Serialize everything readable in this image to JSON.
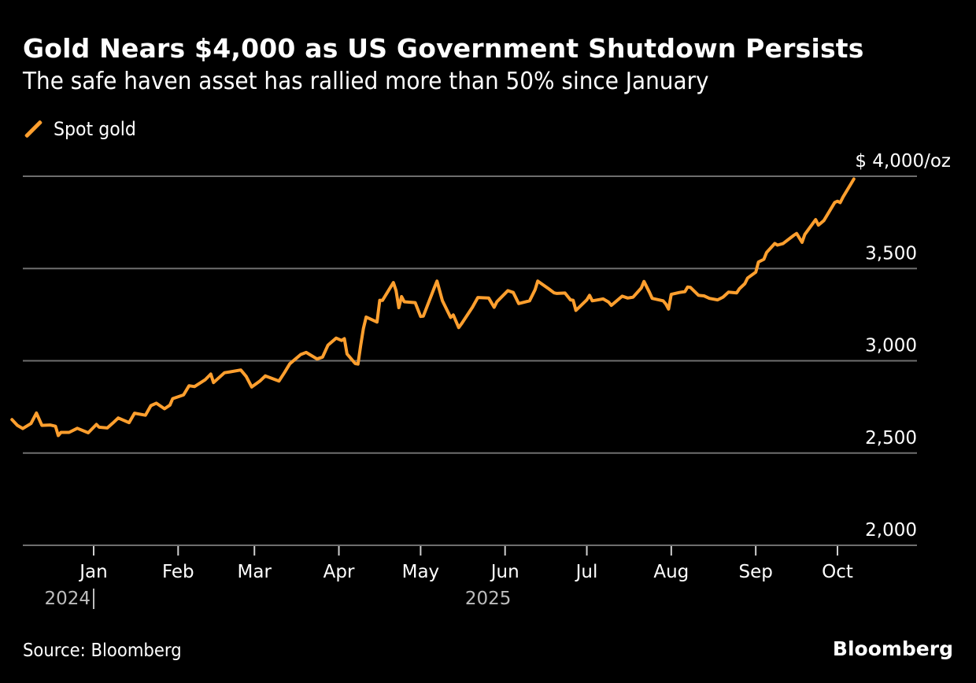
{
  "header": {
    "title": "Gold Nears $4,000 as US Government Shutdown Persists",
    "subtitle": "The safe haven asset has rallied more than 50% since January"
  },
  "footer": {
    "source": "Source: Bloomberg",
    "brand": "Bloomberg"
  },
  "colors": {
    "background": "#000000",
    "series": "#FF9F2E",
    "grid": "#6e6e6e",
    "text": "#ffffff",
    "year_text": "#bdbdbd"
  },
  "chart_data": {
    "type": "line",
    "title": "Gold Nears $4,000 as US Government Shutdown Persists",
    "subtitle": "The safe haven asset has rallied more than 50% since January",
    "xlabel": "",
    "ylabel": "$/oz",
    "ylim": [
      2000,
      4000
    ],
    "yticks": [
      2000,
      2500,
      3000,
      3500,
      4000
    ],
    "ytick_labels": [
      "2,000",
      "2,500",
      "3,000",
      "3,500",
      "$ 4,000/oz"
    ],
    "xticks": [
      "2025-01-01",
      "2025-02-01",
      "2025-03-01",
      "2025-04-01",
      "2025-05-01",
      "2025-06-01",
      "2025-07-01",
      "2025-08-01",
      "2025-09-01",
      "2025-10-01"
    ],
    "xtick_labels": [
      "Jan",
      "Feb",
      "Mar",
      "Apr",
      "May",
      "Jun",
      "Jul",
      "Aug",
      "Sep",
      "Oct"
    ],
    "year_labels": [
      {
        "label": "2024",
        "date": "2025-01-01",
        "align": "end",
        "divider": true
      },
      {
        "label": "2025",
        "date": "2025-05-20",
        "align": "middle",
        "divider": false
      }
    ],
    "xlim": [
      "2024-11-28",
      "2025-10-31"
    ],
    "grid": true,
    "legend": "top-left",
    "source": "Source: Bloomberg",
    "series": [
      {
        "name": "Spot gold",
        "color": "#FF9F2E",
        "points": [
          [
            "2024-12-02",
            2681
          ],
          [
            "2024-12-04",
            2650
          ],
          [
            "2024-12-06",
            2633
          ],
          [
            "2024-12-09",
            2660
          ],
          [
            "2024-12-11",
            2717
          ],
          [
            "2024-12-13",
            2650
          ],
          [
            "2024-12-16",
            2652
          ],
          [
            "2024-12-18",
            2645
          ],
          [
            "2024-12-19",
            2595
          ],
          [
            "2024-12-20",
            2612
          ],
          [
            "2024-12-23",
            2612
          ],
          [
            "2024-12-26",
            2634
          ],
          [
            "2024-12-30",
            2610
          ],
          [
            "2025-01-02",
            2655
          ],
          [
            "2025-01-03",
            2640
          ],
          [
            "2025-01-06",
            2636
          ],
          [
            "2025-01-08",
            2662
          ],
          [
            "2025-01-10",
            2690
          ],
          [
            "2025-01-14",
            2665
          ],
          [
            "2025-01-16",
            2716
          ],
          [
            "2025-01-20",
            2705
          ],
          [
            "2025-01-22",
            2757
          ],
          [
            "2025-01-24",
            2770
          ],
          [
            "2025-01-27",
            2740
          ],
          [
            "2025-01-29",
            2760
          ],
          [
            "2025-01-30",
            2795
          ],
          [
            "2025-02-03",
            2815
          ],
          [
            "2025-02-05",
            2865
          ],
          [
            "2025-02-07",
            2860
          ],
          [
            "2025-02-11",
            2898
          ],
          [
            "2025-02-13",
            2928
          ],
          [
            "2025-02-14",
            2882
          ],
          [
            "2025-02-18",
            2935
          ],
          [
            "2025-02-20",
            2940
          ],
          [
            "2025-02-24",
            2950
          ],
          [
            "2025-02-26",
            2915
          ],
          [
            "2025-02-28",
            2858
          ],
          [
            "2025-03-03",
            2890
          ],
          [
            "2025-03-05",
            2918
          ],
          [
            "2025-03-10",
            2890
          ],
          [
            "2025-03-12",
            2935
          ],
          [
            "2025-03-14",
            2984
          ],
          [
            "2025-03-18",
            3034
          ],
          [
            "2025-03-20",
            3045
          ],
          [
            "2025-03-24",
            3010
          ],
          [
            "2025-03-26",
            3020
          ],
          [
            "2025-03-28",
            3085
          ],
          [
            "2025-03-31",
            3123
          ],
          [
            "2025-04-02",
            3110
          ],
          [
            "2025-04-03",
            3120
          ],
          [
            "2025-04-04",
            3037
          ],
          [
            "2025-04-07",
            2985
          ],
          [
            "2025-04-08",
            2982
          ],
          [
            "2025-04-09",
            3082
          ],
          [
            "2025-04-10",
            3175
          ],
          [
            "2025-04-11",
            3237
          ],
          [
            "2025-04-15",
            3210
          ],
          [
            "2025-04-16",
            3328
          ],
          [
            "2025-04-17",
            3327
          ],
          [
            "2025-04-21",
            3424
          ],
          [
            "2025-04-22",
            3380
          ],
          [
            "2025-04-23",
            3288
          ],
          [
            "2025-04-24",
            3348
          ],
          [
            "2025-04-25",
            3320
          ],
          [
            "2025-04-29",
            3315
          ],
          [
            "2025-05-01",
            3240
          ],
          [
            "2025-05-02",
            3242
          ],
          [
            "2025-05-06",
            3395
          ],
          [
            "2025-05-07",
            3432
          ],
          [
            "2025-05-09",
            3325
          ],
          [
            "2025-05-12",
            3235
          ],
          [
            "2025-05-13",
            3248
          ],
          [
            "2025-05-15",
            3180
          ],
          [
            "2025-05-16",
            3200
          ],
          [
            "2025-05-20",
            3290
          ],
          [
            "2025-05-22",
            3343
          ],
          [
            "2025-05-26",
            3340
          ],
          [
            "2025-05-28",
            3290
          ],
          [
            "2025-05-29",
            3320
          ],
          [
            "2025-06-02",
            3380
          ],
          [
            "2025-06-04",
            3370
          ],
          [
            "2025-06-06",
            3310
          ],
          [
            "2025-06-10",
            3325
          ],
          [
            "2025-06-12",
            3385
          ],
          [
            "2025-06-13",
            3432
          ],
          [
            "2025-06-17",
            3390
          ],
          [
            "2025-06-19",
            3368
          ],
          [
            "2025-06-20",
            3365
          ],
          [
            "2025-06-23",
            3367
          ],
          [
            "2025-06-25",
            3330
          ],
          [
            "2025-06-26",
            3328
          ],
          [
            "2025-06-27",
            3273
          ],
          [
            "2025-07-01",
            3330
          ],
          [
            "2025-07-02",
            3355
          ],
          [
            "2025-07-03",
            3325
          ],
          [
            "2025-07-07",
            3335
          ],
          [
            "2025-07-09",
            3318
          ],
          [
            "2025-07-10",
            3300
          ],
          [
            "2025-07-14",
            3350
          ],
          [
            "2025-07-16",
            3340
          ],
          [
            "2025-07-18",
            3345
          ],
          [
            "2025-07-21",
            3395
          ],
          [
            "2025-07-22",
            3430
          ],
          [
            "2025-07-24",
            3370
          ],
          [
            "2025-07-25",
            3338
          ],
          [
            "2025-07-29",
            3325
          ],
          [
            "2025-07-30",
            3308
          ],
          [
            "2025-07-31",
            3280
          ],
          [
            "2025-08-01",
            3360
          ],
          [
            "2025-08-04",
            3370
          ],
          [
            "2025-08-06",
            3375
          ],
          [
            "2025-08-07",
            3400
          ],
          [
            "2025-08-08",
            3398
          ],
          [
            "2025-08-11",
            3355
          ],
          [
            "2025-08-13",
            3352
          ],
          [
            "2025-08-15",
            3338
          ],
          [
            "2025-08-18",
            3330
          ],
          [
            "2025-08-20",
            3345
          ],
          [
            "2025-08-22",
            3372
          ],
          [
            "2025-08-25",
            3368
          ],
          [
            "2025-08-26",
            3390
          ],
          [
            "2025-08-28",
            3418
          ],
          [
            "2025-08-29",
            3448
          ],
          [
            "2025-09-01",
            3480
          ],
          [
            "2025-09-02",
            3535
          ],
          [
            "2025-09-04",
            3550
          ],
          [
            "2025-09-05",
            3587
          ],
          [
            "2025-09-08",
            3636
          ],
          [
            "2025-09-09",
            3627
          ],
          [
            "2025-09-11",
            3635
          ],
          [
            "2025-09-15",
            3680
          ],
          [
            "2025-09-16",
            3690
          ],
          [
            "2025-09-18",
            3642
          ],
          [
            "2025-09-19",
            3685
          ],
          [
            "2025-09-22",
            3745
          ],
          [
            "2025-09-23",
            3765
          ],
          [
            "2025-09-24",
            3735
          ],
          [
            "2025-09-26",
            3760
          ],
          [
            "2025-09-30",
            3858
          ],
          [
            "2025-10-01",
            3865
          ],
          [
            "2025-10-02",
            3857
          ],
          [
            "2025-10-03",
            3886
          ],
          [
            "2025-10-06",
            3960
          ],
          [
            "2025-10-07",
            3985
          ]
        ]
      }
    ]
  }
}
